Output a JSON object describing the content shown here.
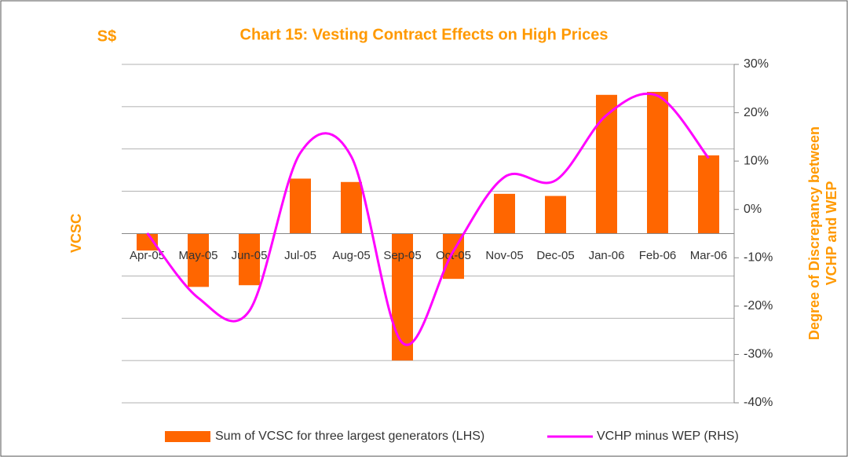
{
  "chart_data": {
    "type": "bar_line",
    "title": "Chart 15: Vesting Contract Effects on High Prices",
    "y_unit_label": "S$",
    "ylabel": "VCSC",
    "y2label": [
      "Degree of Discrepancy  between",
      "VCHP and WEP"
    ],
    "categories": [
      "Apr-05",
      "May-05",
      "Jun-05",
      "Jul-05",
      "Aug-05",
      "Sep-05",
      "Oct-05",
      "Nov-05",
      "Dec-05",
      "Jan-06",
      "Feb-06",
      "Mar-06"
    ],
    "series": [
      {
        "name": "Sum of VCSC for three largest generators (LHS)",
        "type": "bar",
        "color": "#FF6600",
        "axis": "y",
        "values": [
          -0.4,
          -1.26,
          -1.22,
          1.3,
          1.22,
          -3.0,
          -1.07,
          0.94,
          0.89,
          3.28,
          3.35,
          1.85
        ]
      },
      {
        "name": "VCHP minus WEP (RHS)",
        "type": "line",
        "color": "#FF00FF",
        "axis": "y2",
        "values": [
          -4.9,
          -18.3,
          -21,
          11.7,
          10.9,
          -27.6,
          -8.6,
          6.7,
          6,
          19.5,
          23.5,
          10.6
        ]
      }
    ],
    "ylim": [
      -4,
      4
    ],
    "yticks": [
      -4,
      -3,
      -2,
      -1,
      0,
      1,
      2,
      3,
      4
    ],
    "y2lim": [
      -40,
      30
    ],
    "y2ticks": [
      {
        "value": 30,
        "label": "30%"
      },
      {
        "value": 20,
        "label": "20%"
      },
      {
        "value": 10,
        "label": "10%"
      },
      {
        "value": 0,
        "label": "0%"
      },
      {
        "value": -10,
        "label": "-10%"
      },
      {
        "value": -20,
        "label": "-20%"
      },
      {
        "value": -30,
        "label": "-30%"
      },
      {
        "value": -40,
        "label": "-40%"
      }
    ],
    "grid": true,
    "legend": "bottom"
  }
}
